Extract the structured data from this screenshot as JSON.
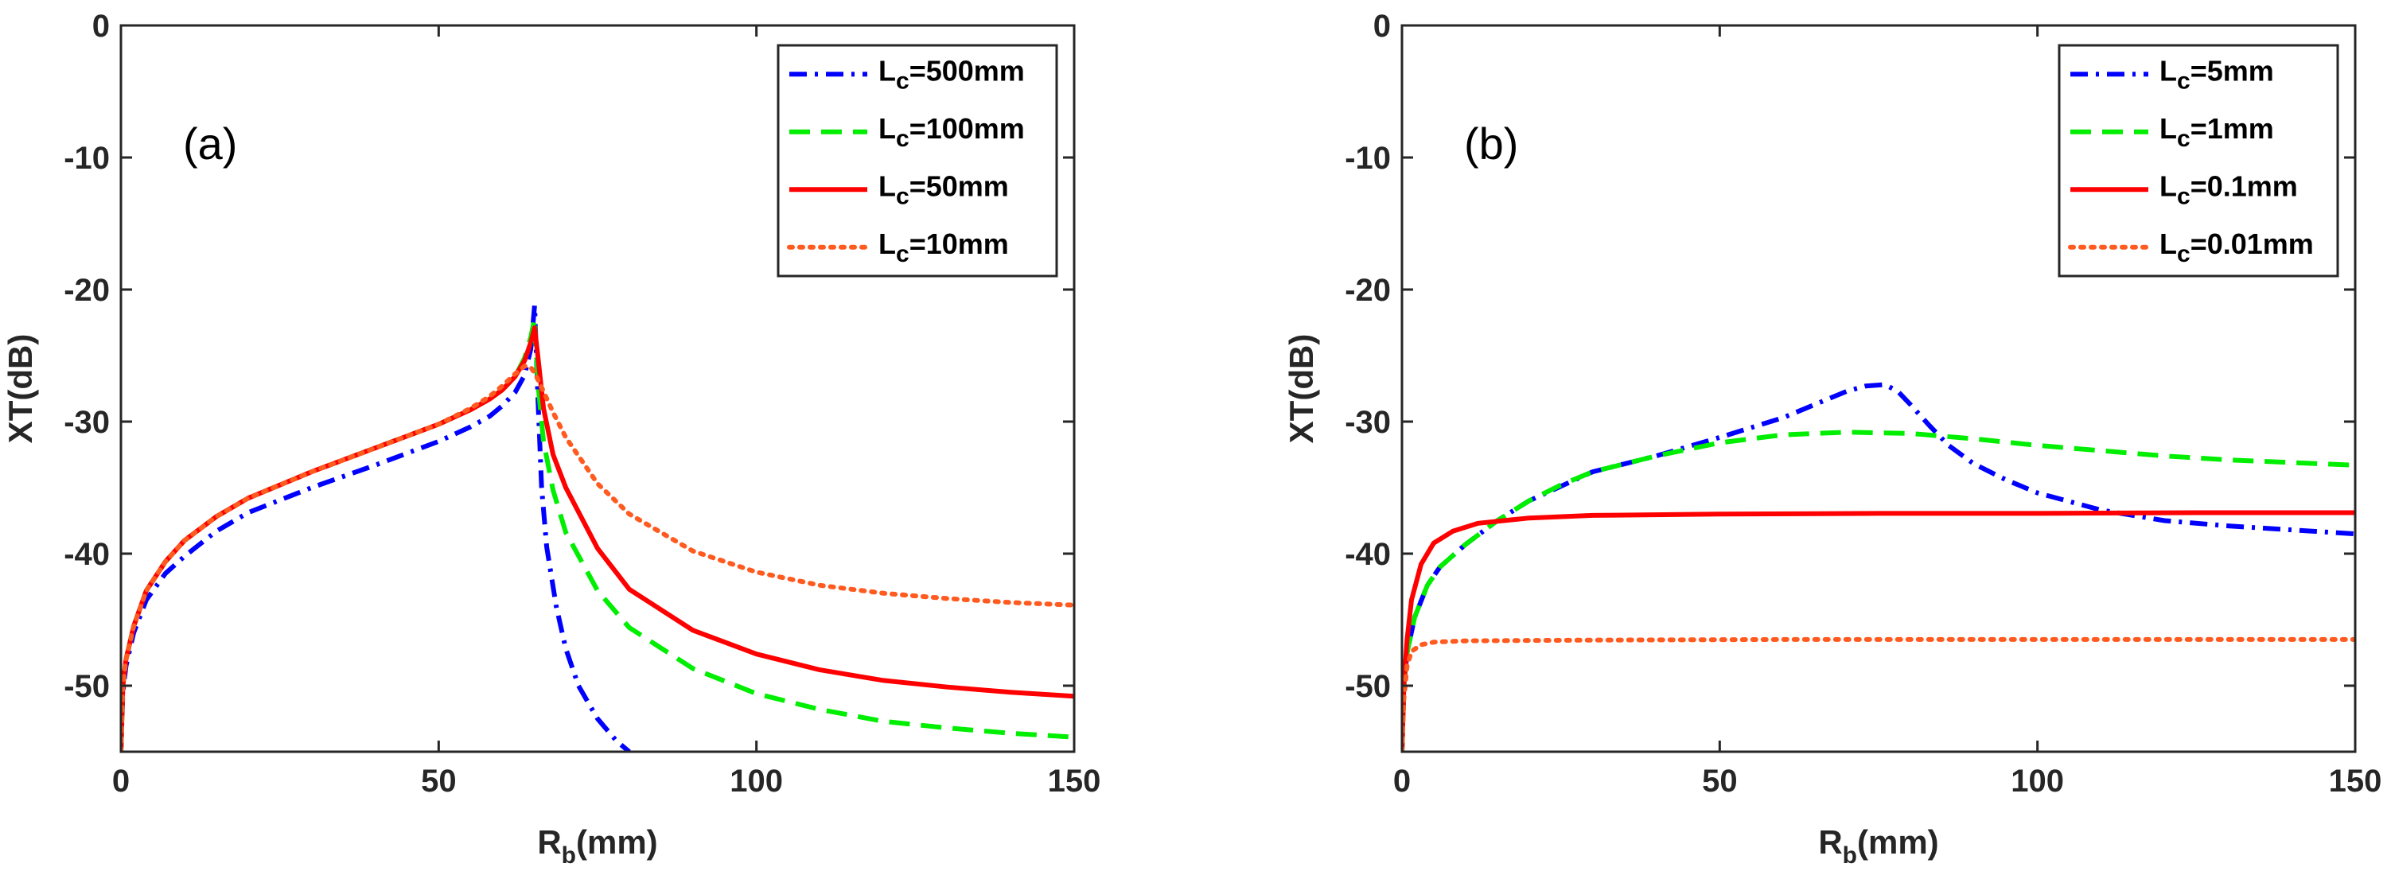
{
  "chart_data": [
    {
      "type": "line",
      "panel_label": "(a)",
      "xlabel_main": "R",
      "xlabel_sub": "b",
      "xlabel_unit": "(mm)",
      "ylabel": "XT(dB)",
      "xlim": [
        0,
        150
      ],
      "ylim": [
        -55,
        0
      ],
      "xticks": [
        "0",
        "50",
        "100",
        "150"
      ],
      "yticks": [
        "0",
        "-10",
        "-20",
        "-30",
        "-40",
        "-50"
      ],
      "legend_position": "top-right",
      "series": [
        {
          "legend_main": "L",
          "legend_sub": "c",
          "legend_rest": "=500mm",
          "color": "#0000ff",
          "dash": "dashdot",
          "points": [
            [
              0,
              -55
            ],
            [
              0.3,
              -50.5
            ],
            [
              0.8,
              -48.5
            ],
            [
              2,
              -46
            ],
            [
              4,
              -43.5
            ],
            [
              7,
              -41.5
            ],
            [
              10,
              -40.2
            ],
            [
              15,
              -38.3
            ],
            [
              20,
              -36.9
            ],
            [
              30,
              -35
            ],
            [
              40,
              -33.3
            ],
            [
              50,
              -31.5
            ],
            [
              55,
              -30.4
            ],
            [
              58,
              -29.6
            ],
            [
              60,
              -28.8
            ],
            [
              62,
              -27.8
            ],
            [
              63.5,
              -26.5
            ],
            [
              64.5,
              -24.5
            ],
            [
              65.1,
              -21.2
            ],
            [
              65.6,
              -28
            ],
            [
              66.2,
              -35
            ],
            [
              67,
              -39.5
            ],
            [
              68.5,
              -44
            ],
            [
              70,
              -47.2
            ],
            [
              72,
              -50
            ],
            [
              75,
              -52.5
            ],
            [
              78,
              -54.2
            ],
            [
              80,
              -55
            ]
          ]
        },
        {
          "legend_main": "L",
          "legend_sub": "c",
          "legend_rest": "=100mm",
          "color": "#00ee00",
          "dash": "dashed",
          "points": [
            [
              0,
              -55
            ],
            [
              0.3,
              -50
            ],
            [
              0.8,
              -48
            ],
            [
              2,
              -45.5
            ],
            [
              4,
              -42.8
            ],
            [
              7,
              -40.6
            ],
            [
              10,
              -39
            ],
            [
              15,
              -37.2
            ],
            [
              20,
              -35.8
            ],
            [
              30,
              -33.8
            ],
            [
              40,
              -32
            ],
            [
              50,
              -30.2
            ],
            [
              55,
              -29.1
            ],
            [
              58,
              -28.3
            ],
            [
              60,
              -27.6
            ],
            [
              62,
              -26.6
            ],
            [
              63.5,
              -25.2
            ],
            [
              64.5,
              -23.6
            ],
            [
              65.1,
              -22.2
            ],
            [
              65.6,
              -27
            ],
            [
              66.5,
              -31.5
            ],
            [
              68,
              -35.2
            ],
            [
              70,
              -38.4
            ],
            [
              75,
              -42.8
            ],
            [
              80,
              -45.6
            ],
            [
              90,
              -48.7
            ],
            [
              100,
              -50.6
            ],
            [
              110,
              -51.8
            ],
            [
              120,
              -52.7
            ],
            [
              130,
              -53.2
            ],
            [
              140,
              -53.6
            ],
            [
              150,
              -53.9
            ]
          ]
        },
        {
          "legend_main": "L",
          "legend_sub": "c",
          "legend_rest": "=50mm",
          "color": "#ff0000",
          "dash": "solid",
          "points": [
            [
              0,
              -55
            ],
            [
              0.3,
              -50
            ],
            [
              0.8,
              -48
            ],
            [
              2,
              -45.5
            ],
            [
              4,
              -42.8
            ],
            [
              7,
              -40.6
            ],
            [
              10,
              -39
            ],
            [
              15,
              -37.2
            ],
            [
              20,
              -35.8
            ],
            [
              30,
              -33.8
            ],
            [
              40,
              -32
            ],
            [
              50,
              -30.2
            ],
            [
              55,
              -29.1
            ],
            [
              58,
              -28.3
            ],
            [
              60,
              -27.6
            ],
            [
              62,
              -26.6
            ],
            [
              63.5,
              -25.4
            ],
            [
              64.5,
              -24
            ],
            [
              65.1,
              -22.9
            ],
            [
              65.6,
              -25
            ],
            [
              66.5,
              -29
            ],
            [
              68,
              -32.5
            ],
            [
              70,
              -35
            ],
            [
              75,
              -39.6
            ],
            [
              80,
              -42.7
            ],
            [
              90,
              -45.8
            ],
            [
              100,
              -47.6
            ],
            [
              110,
              -48.8
            ],
            [
              120,
              -49.6
            ],
            [
              130,
              -50.1
            ],
            [
              140,
              -50.5
            ],
            [
              150,
              -50.8
            ]
          ]
        },
        {
          "legend_main": "L",
          "legend_sub": "c",
          "legend_rest": "=10mm",
          "color": "#ff5a1f",
          "dash": "dotted",
          "points": [
            [
              0,
              -55
            ],
            [
              0.3,
              -50
            ],
            [
              0.8,
              -48
            ],
            [
              2,
              -45.5
            ],
            [
              4,
              -42.8
            ],
            [
              7,
              -40.6
            ],
            [
              10,
              -39
            ],
            [
              15,
              -37.2
            ],
            [
              20,
              -35.8
            ],
            [
              30,
              -33.8
            ],
            [
              40,
              -32
            ],
            [
              50,
              -30.2
            ],
            [
              55,
              -29
            ],
            [
              58,
              -28.1
            ],
            [
              60,
              -27.3
            ],
            [
              62,
              -26.4
            ],
            [
              63.5,
              -25.8
            ],
            [
              64.5,
              -25.9
            ],
            [
              65.1,
              -26.3
            ],
            [
              66,
              -27.2
            ],
            [
              68,
              -29.3
            ],
            [
              70,
              -31.2
            ],
            [
              75,
              -34.7
            ],
            [
              80,
              -37
            ],
            [
              90,
              -39.8
            ],
            [
              100,
              -41.4
            ],
            [
              110,
              -42.4
            ],
            [
              120,
              -43
            ],
            [
              130,
              -43.4
            ],
            [
              140,
              -43.7
            ],
            [
              150,
              -43.9
            ]
          ]
        }
      ]
    },
    {
      "type": "line",
      "panel_label": "(b)",
      "xlabel_main": "R",
      "xlabel_sub": "b",
      "xlabel_unit": "(mm)",
      "ylabel": "XT(dB)",
      "xlim": [
        0,
        150
      ],
      "ylim": [
        -55,
        0
      ],
      "xticks": [
        "0",
        "50",
        "100",
        "150"
      ],
      "yticks": [
        "0",
        "-10",
        "-20",
        "-30",
        "-40",
        "-50"
      ],
      "legend_position": "top-right",
      "series": [
        {
          "legend_main": "L",
          "legend_sub": "c",
          "legend_rest": "=5mm",
          "color": "#0000ff",
          "dash": "dashdot",
          "points": [
            [
              0,
              -55
            ],
            [
              0.3,
              -50
            ],
            [
              0.8,
              -47.5
            ],
            [
              2,
              -44.8
            ],
            [
              4,
              -42.4
            ],
            [
              6,
              -41
            ],
            [
              10,
              -39.3
            ],
            [
              15,
              -37.5
            ],
            [
              20,
              -36
            ],
            [
              25,
              -34.9
            ],
            [
              30,
              -33.8
            ],
            [
              40,
              -32.6
            ],
            [
              50,
              -31.2
            ],
            [
              60,
              -29.7
            ],
            [
              65,
              -28.7
            ],
            [
              70,
              -27.7
            ],
            [
              73,
              -27.3
            ],
            [
              76,
              -27.2
            ],
            [
              78,
              -27.7
            ],
            [
              80,
              -28.7
            ],
            [
              83,
              -30.3
            ],
            [
              86,
              -31.8
            ],
            [
              90,
              -33.2
            ],
            [
              95,
              -34.4
            ],
            [
              100,
              -35.4
            ],
            [
              110,
              -36.7
            ],
            [
              120,
              -37.5
            ],
            [
              130,
              -37.9
            ],
            [
              140,
              -38.2
            ],
            [
              150,
              -38.5
            ]
          ]
        },
        {
          "legend_main": "L",
          "legend_sub": "c",
          "legend_rest": "=1mm",
          "color": "#00ee00",
          "dash": "dashed",
          "points": [
            [
              0,
              -55
            ],
            [
              0.3,
              -50
            ],
            [
              0.8,
              -47.5
            ],
            [
              2,
              -44.8
            ],
            [
              4,
              -42.4
            ],
            [
              6,
              -41
            ],
            [
              10,
              -39.3
            ],
            [
              15,
              -37.5
            ],
            [
              20,
              -36
            ],
            [
              25,
              -34.8
            ],
            [
              30,
              -33.8
            ],
            [
              40,
              -32.6
            ],
            [
              50,
              -31.6
            ],
            [
              60,
              -31
            ],
            [
              70,
              -30.8
            ],
            [
              80,
              -30.9
            ],
            [
              90,
              -31.3
            ],
            [
              100,
              -31.8
            ],
            [
              110,
              -32.2
            ],
            [
              120,
              -32.6
            ],
            [
              130,
              -32.9
            ],
            [
              140,
              -33.1
            ],
            [
              150,
              -33.3
            ]
          ]
        },
        {
          "legend_main": "L",
          "legend_sub": "c",
          "legend_rest": "=0.1mm",
          "color": "#ff0000",
          "dash": "solid",
          "points": [
            [
              0,
              -55
            ],
            [
              0.3,
              -50
            ],
            [
              0.8,
              -46.5
            ],
            [
              1.5,
              -43.5
            ],
            [
              3,
              -40.8
            ],
            [
              5,
              -39.2
            ],
            [
              8,
              -38.3
            ],
            [
              12,
              -37.7
            ],
            [
              20,
              -37.3
            ],
            [
              30,
              -37.1
            ],
            [
              50,
              -37
            ],
            [
              75,
              -36.95
            ],
            [
              100,
              -36.95
            ],
            [
              125,
              -36.9
            ],
            [
              150,
              -36.9
            ]
          ]
        },
        {
          "legend_main": "L",
          "legend_sub": "c",
          "legend_rest": "=0.01mm",
          "color": "#ff5a1f",
          "dash": "dotted",
          "points": [
            [
              0,
              -55
            ],
            [
              0.3,
              -51
            ],
            [
              0.8,
              -48.5
            ],
            [
              1.5,
              -47.4
            ],
            [
              3,
              -46.9
            ],
            [
              5,
              -46.7
            ],
            [
              10,
              -46.6
            ],
            [
              30,
              -46.55
            ],
            [
              60,
              -46.5
            ],
            [
              100,
              -46.5
            ],
            [
              150,
              -46.5
            ]
          ]
        }
      ]
    }
  ]
}
